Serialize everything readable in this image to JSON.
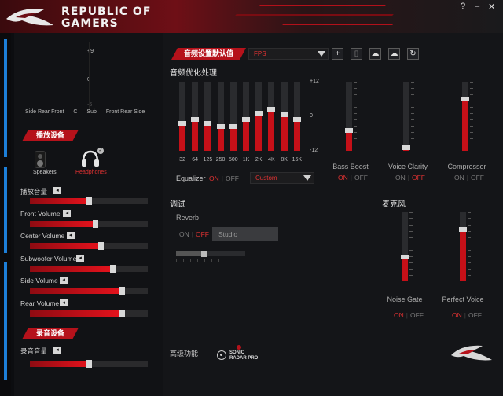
{
  "header": {
    "brand_line1": "REPUBLIC OF",
    "brand_line2": "GAMERS",
    "help": "?",
    "minimize": "–",
    "close": "✕"
  },
  "left": {
    "vu": {
      "top": "+9",
      "mid": "0",
      "bottom": "-6",
      "channels": [
        "Side",
        "Rear",
        "Front",
        "C",
        "Sub",
        "Front",
        "Rear",
        "Side"
      ]
    },
    "playback": {
      "title": "播放设备",
      "speakers": "Speakers",
      "headphones": "Headphones"
    },
    "volumes": [
      {
        "label": "播放音量",
        "value": 0.5
      },
      {
        "label": "Front Volume",
        "value": 0.55
      },
      {
        "label": "Center Volume",
        "value": 0.6
      },
      {
        "label": "Subwoofer Volume",
        "value": 0.7
      },
      {
        "label": "Side Volume",
        "value": 0.78
      },
      {
        "label": "Rear Volume",
        "value": 0.78
      }
    ],
    "record": {
      "title": "录音设备",
      "items": [
        {
          "label": "录音音量",
          "value": 0.5
        }
      ]
    }
  },
  "main": {
    "preset": {
      "title": "音频设置默认值",
      "value": "FPS"
    },
    "eq": {
      "title": "音频优化处理",
      "ticks": [
        "+12",
        "0",
        "-12"
      ],
      "bands": [
        {
          "f": "32",
          "v": -0.2
        },
        {
          "f": "64",
          "v": -0.1
        },
        {
          "f": "125",
          "v": -0.2
        },
        {
          "f": "250",
          "v": -0.3
        },
        {
          "f": "500",
          "v": -0.3
        },
        {
          "f": "1K",
          "v": -0.1
        },
        {
          "f": "2K",
          "v": 0.1
        },
        {
          "f": "4K",
          "v": 0.2
        },
        {
          "f": "8K",
          "v": 0.05
        },
        {
          "f": "16K",
          "v": -0.1
        }
      ],
      "label": "Equalizer",
      "on": "ON",
      "off": "OFF",
      "mode": "Custom"
    },
    "effects": [
      {
        "name": "Bass Boost",
        "value": 0.3,
        "on": "ON",
        "off": "OFF",
        "state": "on"
      },
      {
        "name": "Voice Clarity",
        "value": 0.05,
        "on": "ON",
        "off": "OFF",
        "state": "off"
      },
      {
        "name": "Compressor",
        "value": 0.75,
        "on": "ON",
        "off": "OFF",
        "state": "off"
      }
    ],
    "debug": {
      "title": "调试",
      "reverb": "Reverb",
      "on": "ON",
      "off": "OFF",
      "studio": "Studio",
      "slider": 0.4
    },
    "mic": {
      "title": "麦克风",
      "items": [
        {
          "name": "Noise Gate",
          "value": 0.35,
          "on": "ON",
          "off": "OFF"
        },
        {
          "name": "Perfect Voice",
          "value": 0.75,
          "on": "ON",
          "off": "OFF"
        }
      ]
    },
    "advanced": {
      "title": "高级功能",
      "sonic1": "SONIC",
      "sonic2": "RADAR PRO"
    }
  }
}
